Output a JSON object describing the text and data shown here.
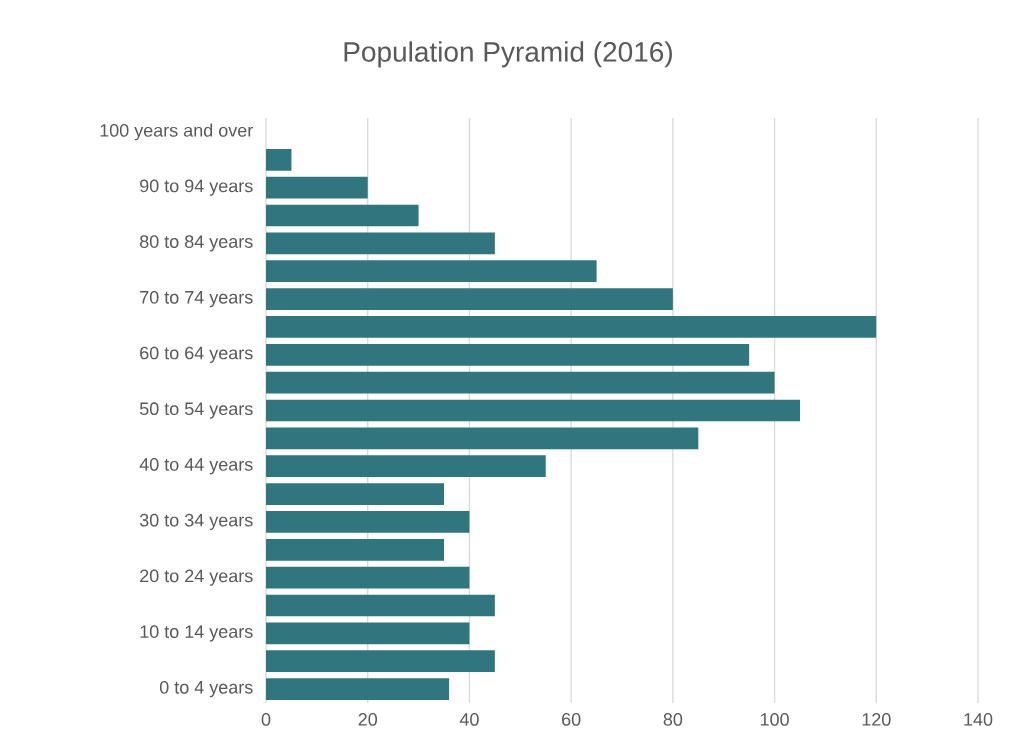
{
  "chart_data": {
    "type": "bar",
    "orientation": "horizontal",
    "title": "Population Pyramid (2016)",
    "categories": [
      "100 years and over",
      null,
      "90 to 94 years",
      null,
      "80 to 84 years",
      null,
      "70 to 74 years",
      null,
      "60 to 64 years",
      null,
      "50 to 54 years",
      null,
      "40 to 44 years",
      null,
      "30 to 34 years",
      null,
      "20 to 24 years",
      null,
      "10 to 14 years",
      null,
      "0 to 4 years"
    ],
    "values": [
      0,
      5,
      20,
      30,
      45,
      65,
      80,
      120,
      95,
      100,
      105,
      85,
      55,
      35,
      40,
      35,
      40,
      45,
      40,
      45,
      36
    ],
    "color": "#31757f",
    "xlim": [
      0,
      140
    ],
    "xticks": [
      0,
      20,
      40,
      60,
      80,
      100,
      120,
      140
    ],
    "grid": "x"
  }
}
